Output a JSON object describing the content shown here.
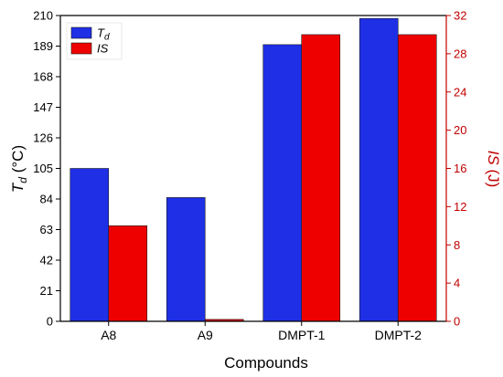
{
  "chart_data": {
    "type": "bar",
    "categories": [
      "A8",
      "A9",
      "DMPT-1",
      "DMPT-2"
    ],
    "xlabel": "Compounds",
    "ylabel_left": {
      "main": "T",
      "sub": "d",
      "unit": " (°C)"
    },
    "ylabel_right": {
      "main": "IS",
      "unit": " (J)"
    },
    "ylim_left": [
      0,
      210
    ],
    "yticks_left": [
      0,
      21,
      42,
      63,
      84,
      105,
      126,
      147,
      168,
      189,
      210
    ],
    "ylim_right": [
      0,
      32
    ],
    "yticks_right": [
      0,
      4,
      8,
      12,
      16,
      20,
      24,
      28,
      32
    ],
    "series": [
      {
        "name": "Td",
        "legend_main": "T",
        "legend_sub": "d",
        "axis": "left",
        "color": "#1f2fe6",
        "values": [
          105,
          85,
          190,
          208
        ]
      },
      {
        "name": "IS",
        "legend_main": "IS",
        "legend_sub": "",
        "axis": "right",
        "color": "#ee0000",
        "values": [
          10,
          0.2,
          30,
          30
        ]
      }
    ],
    "legend_position": "top-left",
    "grid": false,
    "right_axis_color": "#c00000"
  }
}
